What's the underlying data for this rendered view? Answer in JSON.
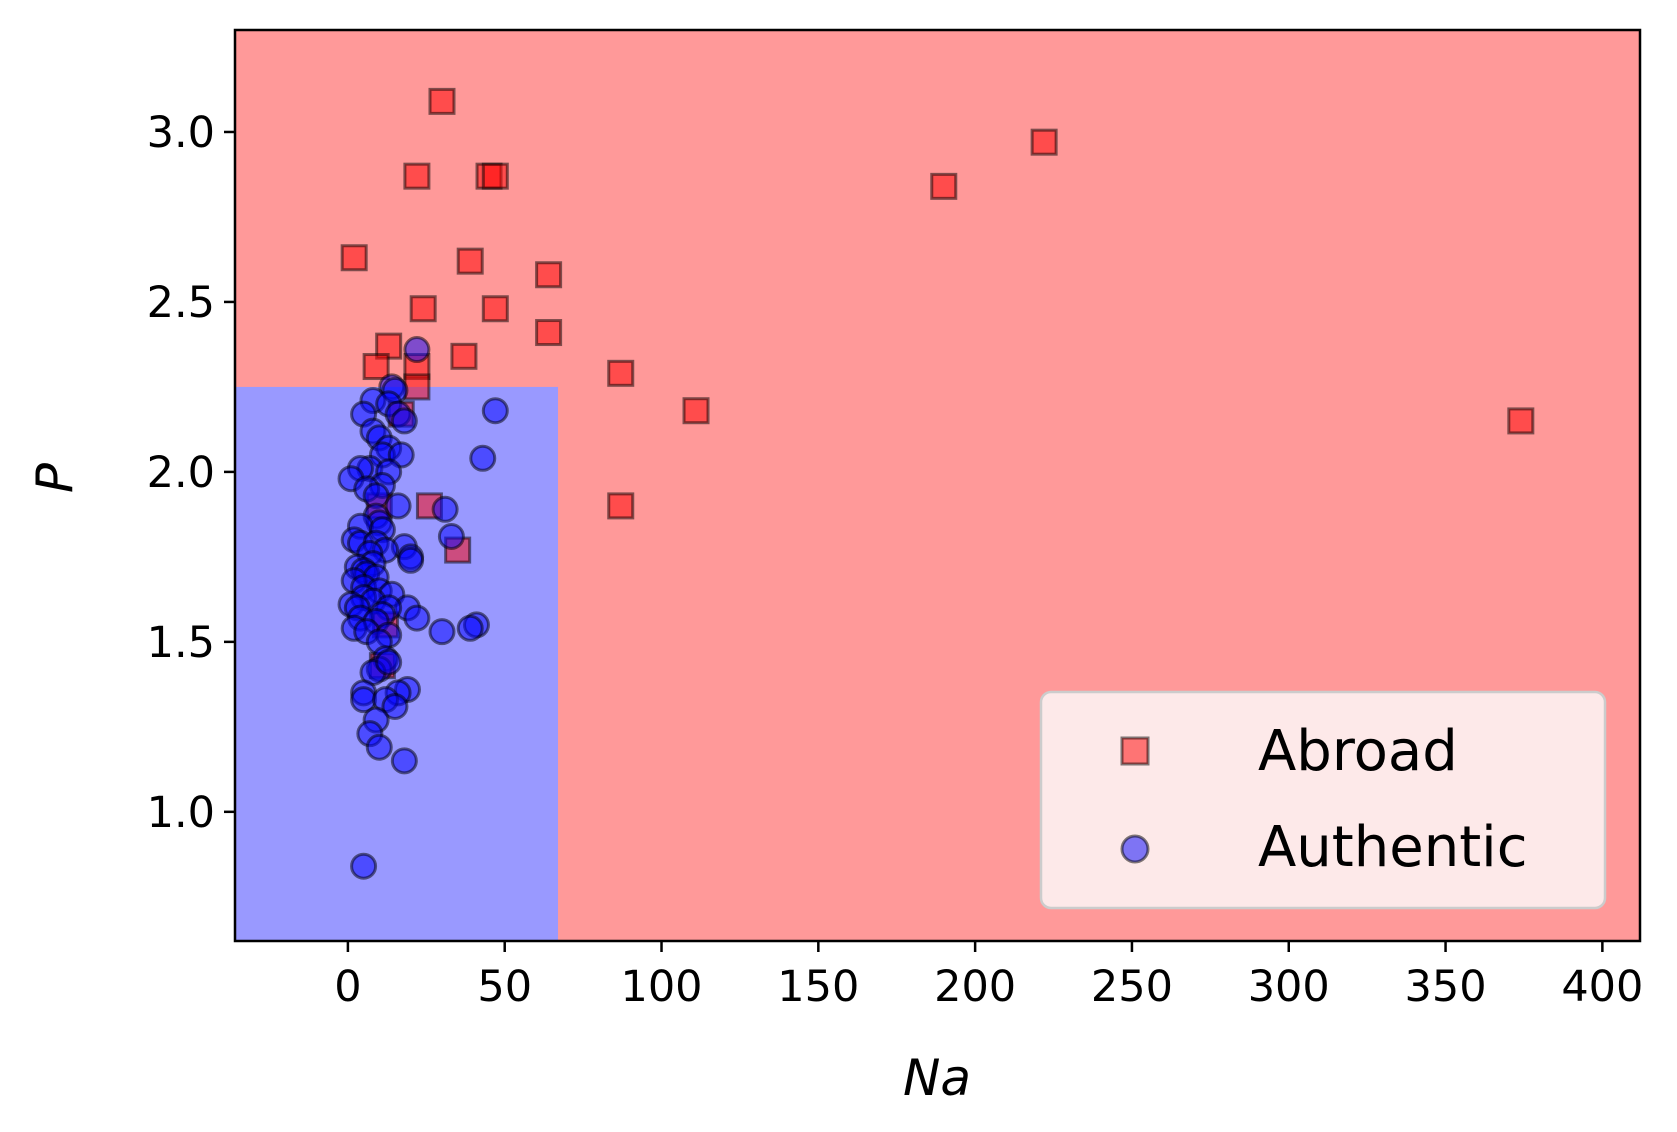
{
  "chart_data": {
    "type": "scatter",
    "xlabel": "Na",
    "ylabel": "P",
    "xlim": [
      -36,
      412
    ],
    "ylim": [
      0.62,
      3.3
    ],
    "xticks": [
      0,
      50,
      100,
      150,
      200,
      250,
      300,
      350,
      400
    ],
    "yticks": [
      1.0,
      1.5,
      2.0,
      2.5,
      3.0
    ],
    "xtick_labels": [
      "0",
      "50",
      "100",
      "150",
      "200",
      "250",
      "300",
      "350",
      "400"
    ],
    "ytick_labels": [
      "1.0",
      "1.5",
      "2.0",
      "2.5",
      "3.0"
    ],
    "grid": false,
    "legend_position": "bottom-right",
    "decision_regions": [
      {
        "class": "Abroad",
        "color": "#ff9999",
        "x_range": [
          -36,
          412
        ],
        "y_range": [
          0.62,
          3.3
        ]
      },
      {
        "class": "Authentic",
        "color": "#9999ff",
        "x_range": [
          -36,
          67
        ],
        "y_range": [
          0.62,
          2.25
        ]
      }
    ],
    "series": [
      {
        "name": "Abroad",
        "marker": "square",
        "color": "#ff0000",
        "points": [
          [
            30,
            3.09
          ],
          [
            222,
            2.97
          ],
          [
            22,
            2.87
          ],
          [
            45,
            2.87
          ],
          [
            47,
            2.87
          ],
          [
            190,
            2.84
          ],
          [
            2,
            2.63
          ],
          [
            39,
            2.62
          ],
          [
            64,
            2.58
          ],
          [
            24,
            2.48
          ],
          [
            47,
            2.48
          ],
          [
            64,
            2.41
          ],
          [
            13,
            2.37
          ],
          [
            37,
            2.34
          ],
          [
            9,
            2.31
          ],
          [
            22,
            2.31
          ],
          [
            87,
            2.29
          ],
          [
            22,
            2.25
          ],
          [
            17,
            2.17
          ],
          [
            111,
            2.18
          ],
          [
            374,
            2.15
          ],
          [
            26,
            1.9
          ],
          [
            87,
            1.9
          ],
          [
            35,
            1.77
          ],
          [
            11,
            1.43
          ],
          [
            10,
            1.9
          ],
          [
            12,
            1.55
          ]
        ]
      },
      {
        "name": "Authentic",
        "marker": "circle",
        "color": "#0000ff",
        "points": [
          [
            22,
            2.36
          ],
          [
            14,
            2.25
          ],
          [
            15,
            2.24
          ],
          [
            8,
            2.21
          ],
          [
            13,
            2.2
          ],
          [
            47,
            2.18
          ],
          [
            5,
            2.17
          ],
          [
            16,
            2.17
          ],
          [
            18,
            2.15
          ],
          [
            8,
            2.12
          ],
          [
            10,
            2.1
          ],
          [
            13,
            2.07
          ],
          [
            11,
            2.05
          ],
          [
            17,
            2.05
          ],
          [
            43,
            2.04
          ],
          [
            7,
            2.01
          ],
          [
            13,
            2.0
          ],
          [
            4,
            2.01
          ],
          [
            1,
            1.98
          ],
          [
            11,
            1.96
          ],
          [
            6,
            1.95
          ],
          [
            9,
            1.93
          ],
          [
            16,
            1.9
          ],
          [
            31,
            1.89
          ],
          [
            9,
            1.87
          ],
          [
            10,
            1.85
          ],
          [
            4,
            1.84
          ],
          [
            11,
            1.83
          ],
          [
            33,
            1.81
          ],
          [
            2,
            1.8
          ],
          [
            4,
            1.79
          ],
          [
            9,
            1.79
          ],
          [
            18,
            1.78
          ],
          [
            12,
            1.77
          ],
          [
            20,
            1.75
          ],
          [
            7,
            1.76
          ],
          [
            20,
            1.74
          ],
          [
            8,
            1.73
          ],
          [
            3,
            1.72
          ],
          [
            5,
            1.71
          ],
          [
            6,
            1.7
          ],
          [
            9,
            1.69
          ],
          [
            2,
            1.68
          ],
          [
            5,
            1.66
          ],
          [
            10,
            1.65
          ],
          [
            14,
            1.64
          ],
          [
            5,
            1.63
          ],
          [
            8,
            1.62
          ],
          [
            1,
            1.61
          ],
          [
            19,
            1.6
          ],
          [
            3,
            1.6
          ],
          [
            13,
            1.6
          ],
          [
            11,
            1.58
          ],
          [
            4,
            1.57
          ],
          [
            22,
            1.57
          ],
          [
            9,
            1.56
          ],
          [
            41,
            1.55
          ],
          [
            39,
            1.54
          ],
          [
            2,
            1.54
          ],
          [
            6,
            1.53
          ],
          [
            30,
            1.53
          ],
          [
            13,
            1.52
          ],
          [
            10,
            1.5
          ],
          [
            12,
            1.45
          ],
          [
            10,
            1.42
          ],
          [
            8,
            1.41
          ],
          [
            13,
            1.44
          ],
          [
            19,
            1.36
          ],
          [
            16,
            1.35
          ],
          [
            5,
            1.35
          ],
          [
            5,
            1.33
          ],
          [
            12,
            1.33
          ],
          [
            15,
            1.31
          ],
          [
            9,
            1.27
          ],
          [
            7,
            1.23
          ],
          [
            10,
            1.19
          ],
          [
            18,
            1.15
          ],
          [
            5,
            0.84
          ]
        ]
      }
    ]
  }
}
